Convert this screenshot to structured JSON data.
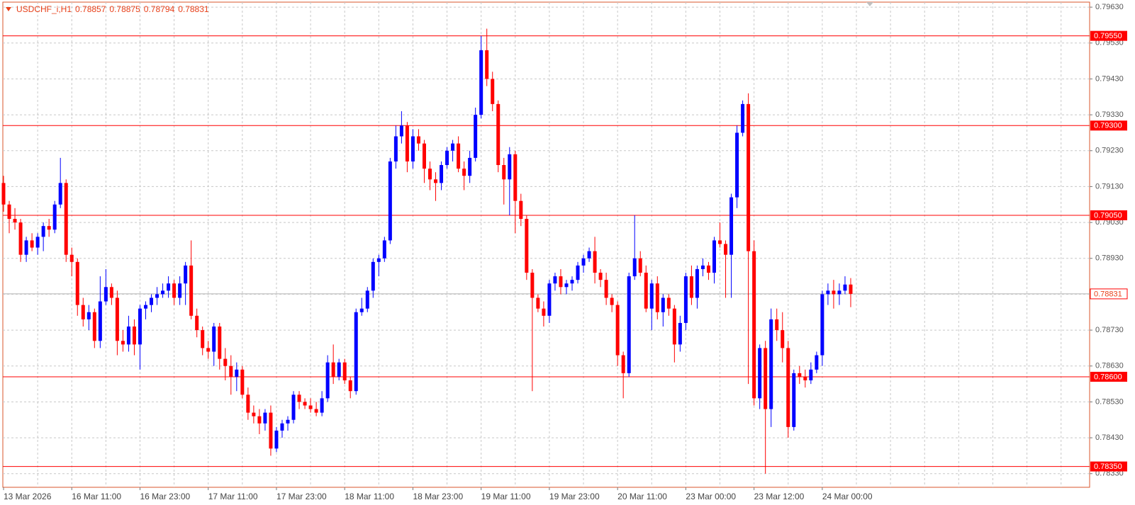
{
  "chart_data": {
    "type": "candlestick",
    "title": "USDCHF_i,H1",
    "categories": [
      "13 Mar 2026",
      null,
      null,
      null,
      null,
      null,
      null,
      null,
      null,
      null,
      null,
      null,
      "16 Mar 11:00",
      null,
      null,
      null,
      null,
      null,
      null,
      null,
      null,
      null,
      null,
      null,
      "16 Mar 23:00",
      null,
      null,
      null,
      null,
      null,
      null,
      null,
      null,
      null,
      null,
      null,
      "17 Mar 11:00",
      null,
      null,
      null,
      null,
      null,
      null,
      null,
      null,
      null,
      null,
      null,
      "17 Mar 23:00",
      null,
      null,
      null,
      null,
      null,
      null,
      null,
      null,
      null,
      null,
      null,
      "18 Mar 11:00",
      null,
      null,
      null,
      null,
      null,
      null,
      null,
      null,
      null,
      null,
      null,
      "18 Mar 23:00",
      null,
      null,
      null,
      null,
      null,
      null,
      null,
      null,
      null,
      null,
      null,
      "19 Mar 11:00",
      null,
      null,
      null,
      null,
      null,
      null,
      null,
      null,
      null,
      null,
      null,
      "19 Mar 23:00",
      null,
      null,
      null,
      null,
      null,
      null,
      null,
      null,
      null,
      null,
      null,
      "20 Mar 11:00",
      null,
      null,
      null,
      null,
      null,
      null,
      null,
      null,
      null,
      null,
      null,
      "23 Mar 00:00",
      null,
      null,
      null,
      null,
      null,
      null,
      null,
      null,
      null,
      null,
      null,
      "23 Mar 12:00",
      null,
      null,
      null,
      null,
      null,
      null,
      null,
      null,
      null,
      null,
      null,
      "24 Mar 00:00",
      null,
      null,
      null,
      null,
      null
    ],
    "candles": [
      [
        0.7914,
        0.7916,
        0.7906,
        0.7908
      ],
      [
        0.7908,
        0.7909,
        0.79,
        0.7904
      ],
      [
        0.7904,
        0.7907,
        0.7901,
        0.7903
      ],
      [
        0.7903,
        0.7904,
        0.7892,
        0.7894
      ],
      [
        0.7894,
        0.7899,
        0.7892,
        0.7898
      ],
      [
        0.7898,
        0.79,
        0.7895,
        0.7896
      ],
      [
        0.7896,
        0.79,
        0.7894,
        0.7899
      ],
      [
        0.7899,
        0.7903,
        0.7895,
        0.7902
      ],
      [
        0.7902,
        0.7904,
        0.7899,
        0.7901
      ],
      [
        0.7901,
        0.7909,
        0.79,
        0.7908
      ],
      [
        0.7908,
        0.7921,
        0.7907,
        0.7914
      ],
      [
        0.7914,
        0.7915,
        0.7892,
        0.7894
      ],
      [
        0.7894,
        0.7896,
        0.7888,
        0.7892
      ],
      [
        0.7892,
        0.7893,
        0.7877,
        0.788
      ],
      [
        0.788,
        0.7882,
        0.7874,
        0.7876
      ],
      [
        0.7876,
        0.788,
        0.7873,
        0.7878
      ],
      [
        0.7878,
        0.7879,
        0.7868,
        0.787
      ],
      [
        0.787,
        0.7888,
        0.7868,
        0.7881
      ],
      [
        0.7881,
        0.789,
        0.788,
        0.7885
      ],
      [
        0.7885,
        0.7886,
        0.788,
        0.7882
      ],
      [
        0.7882,
        0.7884,
        0.7866,
        0.787
      ],
      [
        0.787,
        0.7873,
        0.7867,
        0.7869
      ],
      [
        0.7869,
        0.7877,
        0.7867,
        0.7874
      ],
      [
        0.7874,
        0.7876,
        0.7866,
        0.7869
      ],
      [
        0.7869,
        0.788,
        0.7862,
        0.7879
      ],
      [
        0.7879,
        0.7881,
        0.7876,
        0.788
      ],
      [
        0.788,
        0.7883,
        0.7878,
        0.7882
      ],
      [
        0.7882,
        0.7885,
        0.788,
        0.7883
      ],
      [
        0.7883,
        0.7886,
        0.7882,
        0.7884
      ],
      [
        0.7884,
        0.7888,
        0.7882,
        0.7886
      ],
      [
        0.7886,
        0.7887,
        0.788,
        0.7882
      ],
      [
        0.7882,
        0.7888,
        0.788,
        0.7886
      ],
      [
        0.7886,
        0.7892,
        0.788,
        0.7891
      ],
      [
        0.7891,
        0.7898,
        0.7876,
        0.7877
      ],
      [
        0.7877,
        0.7879,
        0.7871,
        0.7873
      ],
      [
        0.7873,
        0.7874,
        0.7866,
        0.7868
      ],
      [
        0.7868,
        0.787,
        0.7865,
        0.7867
      ],
      [
        0.7867,
        0.7875,
        0.7863,
        0.7874
      ],
      [
        0.7874,
        0.7875,
        0.7862,
        0.7865
      ],
      [
        0.7865,
        0.7868,
        0.7859,
        0.7863
      ],
      [
        0.7863,
        0.7866,
        0.7855,
        0.786
      ],
      [
        0.786,
        0.7864,
        0.7856,
        0.7862
      ],
      [
        0.7862,
        0.7863,
        0.7854,
        0.7855
      ],
      [
        0.7855,
        0.7857,
        0.7848,
        0.785
      ],
      [
        0.785,
        0.7852,
        0.7847,
        0.7849
      ],
      [
        0.7849,
        0.7851,
        0.7844,
        0.7847
      ],
      [
        0.7847,
        0.7851,
        0.7845,
        0.785
      ],
      [
        0.785,
        0.7852,
        0.7838,
        0.784
      ],
      [
        0.784,
        0.7846,
        0.7839,
        0.7845
      ],
      [
        0.7845,
        0.7848,
        0.7843,
        0.7847
      ],
      [
        0.7847,
        0.7849,
        0.7845,
        0.7848
      ],
      [
        0.7848,
        0.7856,
        0.7847,
        0.7855
      ],
      [
        0.7855,
        0.7856,
        0.7851,
        0.7853
      ],
      [
        0.7853,
        0.7854,
        0.7851,
        0.7852
      ],
      [
        0.7852,
        0.7854,
        0.785,
        0.7851
      ],
      [
        0.7851,
        0.7853,
        0.7849,
        0.785
      ],
      [
        0.785,
        0.7856,
        0.7849,
        0.7854
      ],
      [
        0.7854,
        0.7866,
        0.7853,
        0.7864
      ],
      [
        0.7864,
        0.7869,
        0.7858,
        0.786
      ],
      [
        0.786,
        0.7865,
        0.7859,
        0.7864
      ],
      [
        0.7864,
        0.7865,
        0.7858,
        0.7859
      ],
      [
        0.7859,
        0.786,
        0.7854,
        0.7856
      ],
      [
        0.7856,
        0.7879,
        0.7855,
        0.7878
      ],
      [
        0.7878,
        0.7882,
        0.7877,
        0.7879
      ],
      [
        0.7879,
        0.7885,
        0.7878,
        0.7884
      ],
      [
        0.7884,
        0.7893,
        0.7882,
        0.7892
      ],
      [
        0.7892,
        0.7894,
        0.7888,
        0.7893
      ],
      [
        0.7893,
        0.7899,
        0.7892,
        0.7898
      ],
      [
        0.7898,
        0.7921,
        0.7897,
        0.792
      ],
      [
        0.792,
        0.793,
        0.7918,
        0.7927
      ],
      [
        0.7927,
        0.7934,
        0.7925,
        0.793
      ],
      [
        0.793,
        0.7931,
        0.7917,
        0.792
      ],
      [
        0.792,
        0.7929,
        0.7918,
        0.7927
      ],
      [
        0.7927,
        0.7929,
        0.7923,
        0.7925
      ],
      [
        0.7925,
        0.7926,
        0.7914,
        0.7918
      ],
      [
        0.7918,
        0.792,
        0.7912,
        0.7915
      ],
      [
        0.7915,
        0.7917,
        0.7909,
        0.7914
      ],
      [
        0.7914,
        0.792,
        0.7912,
        0.7919
      ],
      [
        0.7919,
        0.7924,
        0.7918,
        0.7923
      ],
      [
        0.7923,
        0.7926,
        0.792,
        0.7925
      ],
      [
        0.7925,
        0.7927,
        0.7917,
        0.7918
      ],
      [
        0.7918,
        0.792,
        0.7912,
        0.7916
      ],
      [
        0.7916,
        0.7923,
        0.7914,
        0.7921
      ],
      [
        0.7921,
        0.7935,
        0.792,
        0.7933
      ],
      [
        0.7933,
        0.7955,
        0.7932,
        0.7951
      ],
      [
        0.7951,
        0.7957,
        0.7941,
        0.7943
      ],
      [
        0.7943,
        0.7945,
        0.7934,
        0.7936
      ],
      [
        0.7936,
        0.7937,
        0.7917,
        0.7919
      ],
      [
        0.7919,
        0.7921,
        0.7908,
        0.7915
      ],
      [
        0.7915,
        0.7924,
        0.7905,
        0.7922
      ],
      [
        0.7922,
        0.7923,
        0.79,
        0.7909
      ],
      [
        0.7909,
        0.7911,
        0.7902,
        0.7904
      ],
      [
        0.7904,
        0.7905,
        0.7887,
        0.7889
      ],
      [
        0.7889,
        0.789,
        0.7856,
        0.7882
      ],
      [
        0.7882,
        0.7883,
        0.7878,
        0.7879
      ],
      [
        0.7879,
        0.7881,
        0.7874,
        0.7877
      ],
      [
        0.7877,
        0.7887,
        0.7875,
        0.7886
      ],
      [
        0.7886,
        0.7889,
        0.7884,
        0.7888
      ],
      [
        0.7888,
        0.789,
        0.7883,
        0.7885
      ],
      [
        0.7885,
        0.7887,
        0.7883,
        0.7886
      ],
      [
        0.7886,
        0.7888,
        0.7884,
        0.7887
      ],
      [
        0.7887,
        0.7892,
        0.7886,
        0.7891
      ],
      [
        0.7891,
        0.7894,
        0.7889,
        0.7893
      ],
      [
        0.7893,
        0.7896,
        0.7892,
        0.7895
      ],
      [
        0.7895,
        0.7899,
        0.7886,
        0.7889
      ],
      [
        0.7889,
        0.789,
        0.7885,
        0.7887
      ],
      [
        0.7887,
        0.7889,
        0.788,
        0.7882
      ],
      [
        0.7882,
        0.7883,
        0.7878,
        0.788
      ],
      [
        0.788,
        0.7881,
        0.7863,
        0.7866
      ],
      [
        0.7866,
        0.7867,
        0.7854,
        0.7861
      ],
      [
        0.7861,
        0.7889,
        0.786,
        0.7888
      ],
      [
        0.7888,
        0.7905,
        0.7887,
        0.7893
      ],
      [
        0.7893,
        0.7895,
        0.7888,
        0.7889
      ],
      [
        0.7889,
        0.7891,
        0.7878,
        0.7879
      ],
      [
        0.7879,
        0.7887,
        0.7873,
        0.7886
      ],
      [
        0.7886,
        0.7888,
        0.7876,
        0.7878
      ],
      [
        0.7878,
        0.7883,
        0.7874,
        0.7882
      ],
      [
        0.7882,
        0.7883,
        0.7877,
        0.7879
      ],
      [
        0.7879,
        0.788,
        0.7864,
        0.7869
      ],
      [
        0.7869,
        0.7877,
        0.7867,
        0.7875
      ],
      [
        0.7875,
        0.7889,
        0.7873,
        0.7888
      ],
      [
        0.7888,
        0.7891,
        0.788,
        0.7882
      ],
      [
        0.7882,
        0.7891,
        0.7879,
        0.789
      ],
      [
        0.789,
        0.7893,
        0.7888,
        0.7891
      ],
      [
        0.7891,
        0.7892,
        0.7887,
        0.7889
      ],
      [
        0.7889,
        0.7899,
        0.7886,
        0.7898
      ],
      [
        0.7898,
        0.7903,
        0.7896,
        0.7897
      ],
      [
        0.7897,
        0.7898,
        0.7882,
        0.7894
      ],
      [
        0.7894,
        0.7911,
        0.7882,
        0.791
      ],
      [
        0.791,
        0.793,
        0.7907,
        0.7928
      ],
      [
        0.7928,
        0.7937,
        0.7927,
        0.7936
      ],
      [
        0.7936,
        0.7939,
        0.7858,
        0.7895
      ],
      [
        0.7895,
        0.7898,
        0.7852,
        0.7854
      ],
      [
        0.7854,
        0.7869,
        0.7851,
        0.7868
      ],
      [
        0.7868,
        0.787,
        0.7833,
        0.7851
      ],
      [
        0.7851,
        0.7879,
        0.7846,
        0.7876
      ],
      [
        0.7876,
        0.7879,
        0.787,
        0.7873
      ],
      [
        0.7873,
        0.7878,
        0.7864,
        0.7868
      ],
      [
        0.7868,
        0.787,
        0.7843,
        0.7846
      ],
      [
        0.7846,
        0.7862,
        0.7845,
        0.7861
      ],
      [
        0.7861,
        0.7863,
        0.7858,
        0.786
      ],
      [
        0.786,
        0.7862,
        0.7857,
        0.7859
      ],
      [
        0.7859,
        0.7864,
        0.7858,
        0.7862
      ],
      [
        0.7862,
        0.7867,
        0.7861,
        0.7866
      ],
      [
        0.7866,
        0.7884,
        0.7863,
        0.7883
      ],
      [
        0.7883,
        0.7886,
        0.788,
        0.7884
      ],
      [
        0.7884,
        0.7887,
        0.7879,
        0.7883
      ],
      [
        0.7883,
        0.7886,
        0.788,
        0.7884
      ],
      [
        0.7884,
        0.7888,
        0.7883,
        0.78857
      ],
      [
        0.78857,
        0.78875,
        0.78794,
        0.78831
      ]
    ],
    "ylim": [
      0.78292,
      0.79644
    ],
    "yticks": [
      {
        "value": 0.7963,
        "label": "0.79630"
      },
      {
        "value": 0.7953,
        "label": "0.79530"
      },
      {
        "value": 0.7943,
        "label": "0.79430"
      },
      {
        "value": 0.7933,
        "label": "0.79330"
      },
      {
        "value": 0.7923,
        "label": "0.79230"
      },
      {
        "value": 0.7913,
        "label": "0.79130"
      },
      {
        "value": 0.7903,
        "label": "0.79030"
      },
      {
        "value": 0.7893,
        "label": "0.78930"
      },
      {
        "value": 0.7883,
        "label": "0.78830"
      },
      {
        "value": 0.7873,
        "label": "0.78730"
      },
      {
        "value": 0.7863,
        "label": "0.78630"
      },
      {
        "value": 0.7853,
        "label": "0.78530"
      },
      {
        "value": 0.7843,
        "label": "0.78430"
      },
      {
        "value": 0.7833,
        "label": "0.78330"
      }
    ],
    "levels": [
      {
        "value": 0.7955,
        "label": "0.79550"
      },
      {
        "value": 0.793,
        "label": "0.79300"
      },
      {
        "value": 0.7905,
        "label": "0.79050"
      },
      {
        "value": 0.786,
        "label": "0.78600"
      },
      {
        "value": 0.7835,
        "label": "0.78350"
      }
    ],
    "up_color": "#0000ff",
    "down_color": "#ff0000",
    "level_color": "#ff0000",
    "grid": true
  }
}
